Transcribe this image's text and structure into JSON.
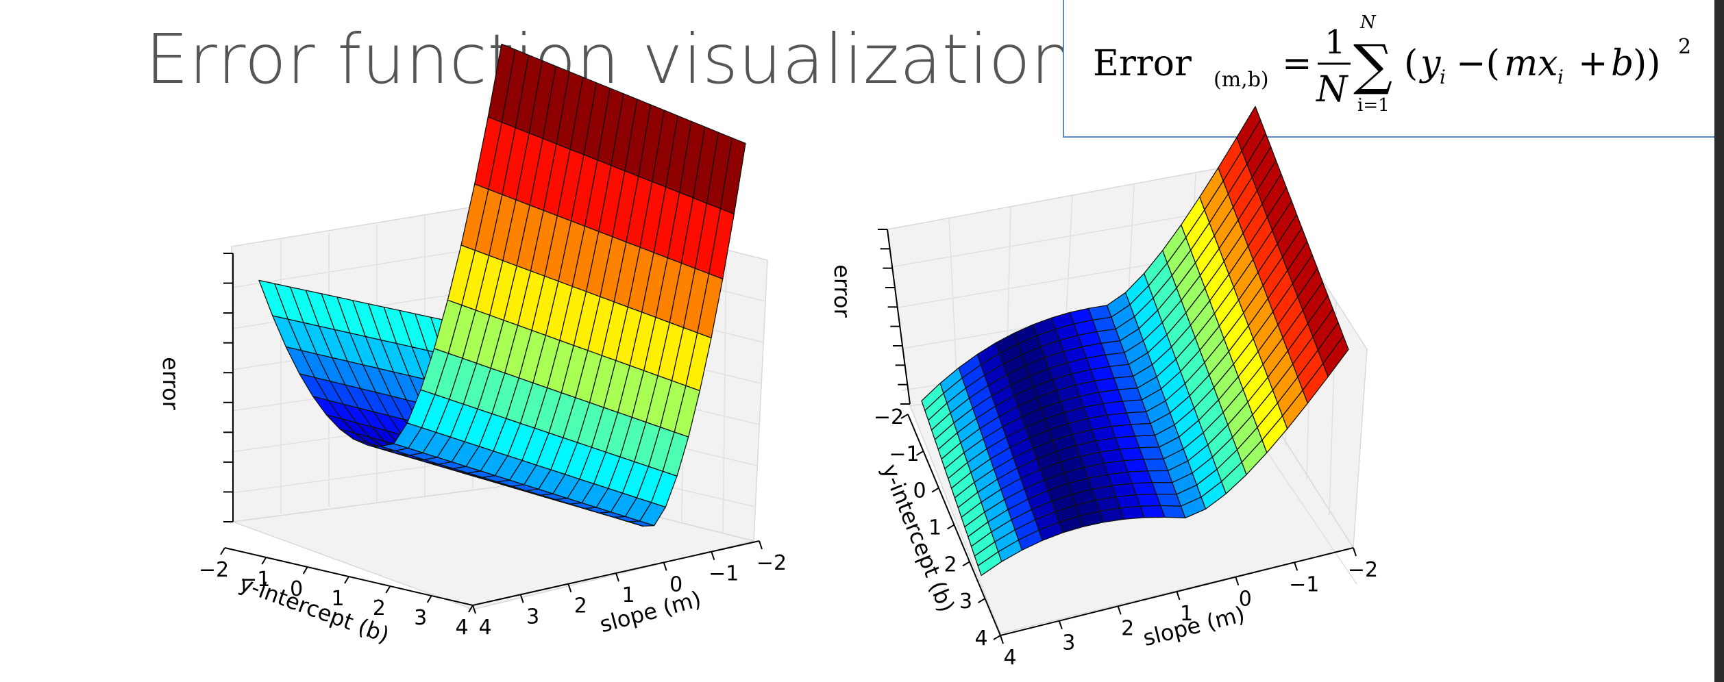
{
  "page": {
    "title": "Error function visualization"
  },
  "formula": {
    "lhs_name": "Error",
    "lhs_subscript": "(m,b)",
    "equals": "=",
    "frac_num": "1",
    "frac_den": "N",
    "sum_symbol": "∑",
    "sum_upper": "N",
    "sum_lower": "i=1",
    "body_open": "(",
    "body_y": "y",
    "body_i1": "i",
    "body_minus": "−(",
    "body_mx": "mx",
    "body_i2": "i",
    "body_plus": "+",
    "body_b": "b",
    "body_close": "))",
    "power": "2"
  },
  "chart_data": [
    {
      "type": "surface3d",
      "view": "left",
      "function": "error = mean((y_i - (m*x_i + b))^2)",
      "xlabel": "slope (m)",
      "ylabel": "y-intercept (b)",
      "zlabel": "error",
      "x_ticks": [
        "−2",
        "−1",
        "0",
        "1",
        "2",
        "3",
        "4"
      ],
      "y_ticks": [
        "−2",
        "−1",
        "0",
        "1",
        "2",
        "3",
        "4"
      ],
      "xlim": [
        -2,
        4
      ],
      "ylim": [
        -2,
        4
      ],
      "colormap": "jet",
      "grid": true
    },
    {
      "type": "surface3d",
      "view": "right",
      "function": "error = mean((y_i - (m*x_i + b))^2)",
      "xlabel": "slope (m)",
      "ylabel": "y-intercept (b)",
      "zlabel": "error",
      "x_ticks": [
        "−2",
        "−1",
        "0",
        "1",
        "2",
        "3",
        "4"
      ],
      "y_ticks": [
        "−2",
        "−1",
        "0",
        "1",
        "2",
        "3",
        "4"
      ],
      "xlim": [
        -2,
        4
      ],
      "ylim": [
        -2,
        4
      ],
      "colormap": "jet",
      "grid": true
    }
  ]
}
